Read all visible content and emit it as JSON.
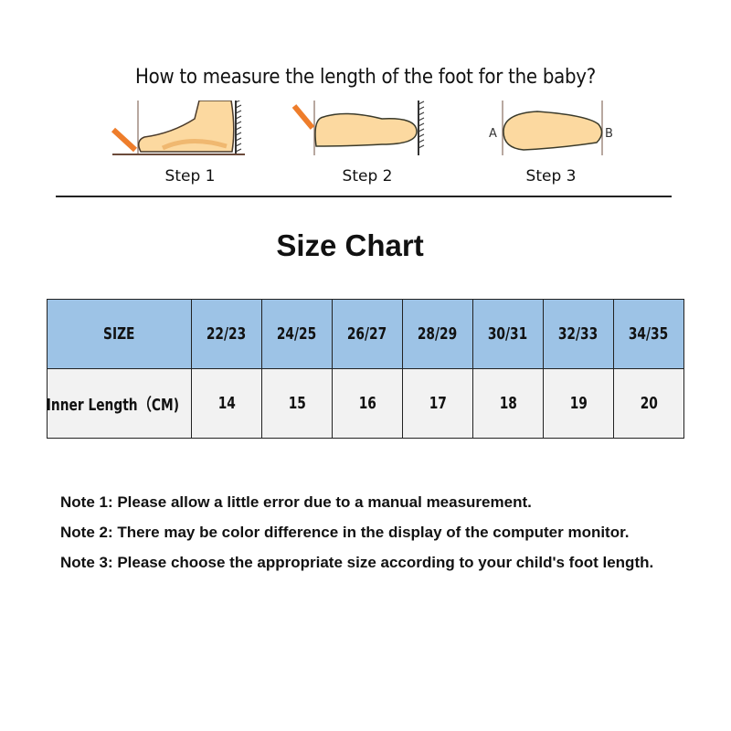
{
  "howto": {
    "title": "How to measure the length of the foot for the baby?",
    "steps": [
      "Step 1",
      "Step 2",
      "Step 3"
    ],
    "point_labels": [
      "A",
      "B"
    ]
  },
  "size_chart": {
    "title": "Size Chart",
    "header_label": "SIZE",
    "row_label": "Inner Length（CM)",
    "sizes": [
      "22/23",
      "24/25",
      "26/27",
      "28/29",
      "30/31",
      "32/33",
      "34/35"
    ],
    "lengths": [
      "14",
      "15",
      "16",
      "17",
      "18",
      "19",
      "20"
    ],
    "colors": {
      "header_bg": "#9dc3e6",
      "row_bg": "#f2f2f2",
      "foot": "#fcd9a0",
      "pencil": "#ee7d2b"
    }
  },
  "notes": [
    "Note 1: Please allow a little error due to a manual measurement.",
    "Note 2: There may be color difference in the display of the computer monitor.",
    "Note 3: Please choose the appropriate size according to your child's foot length."
  ]
}
